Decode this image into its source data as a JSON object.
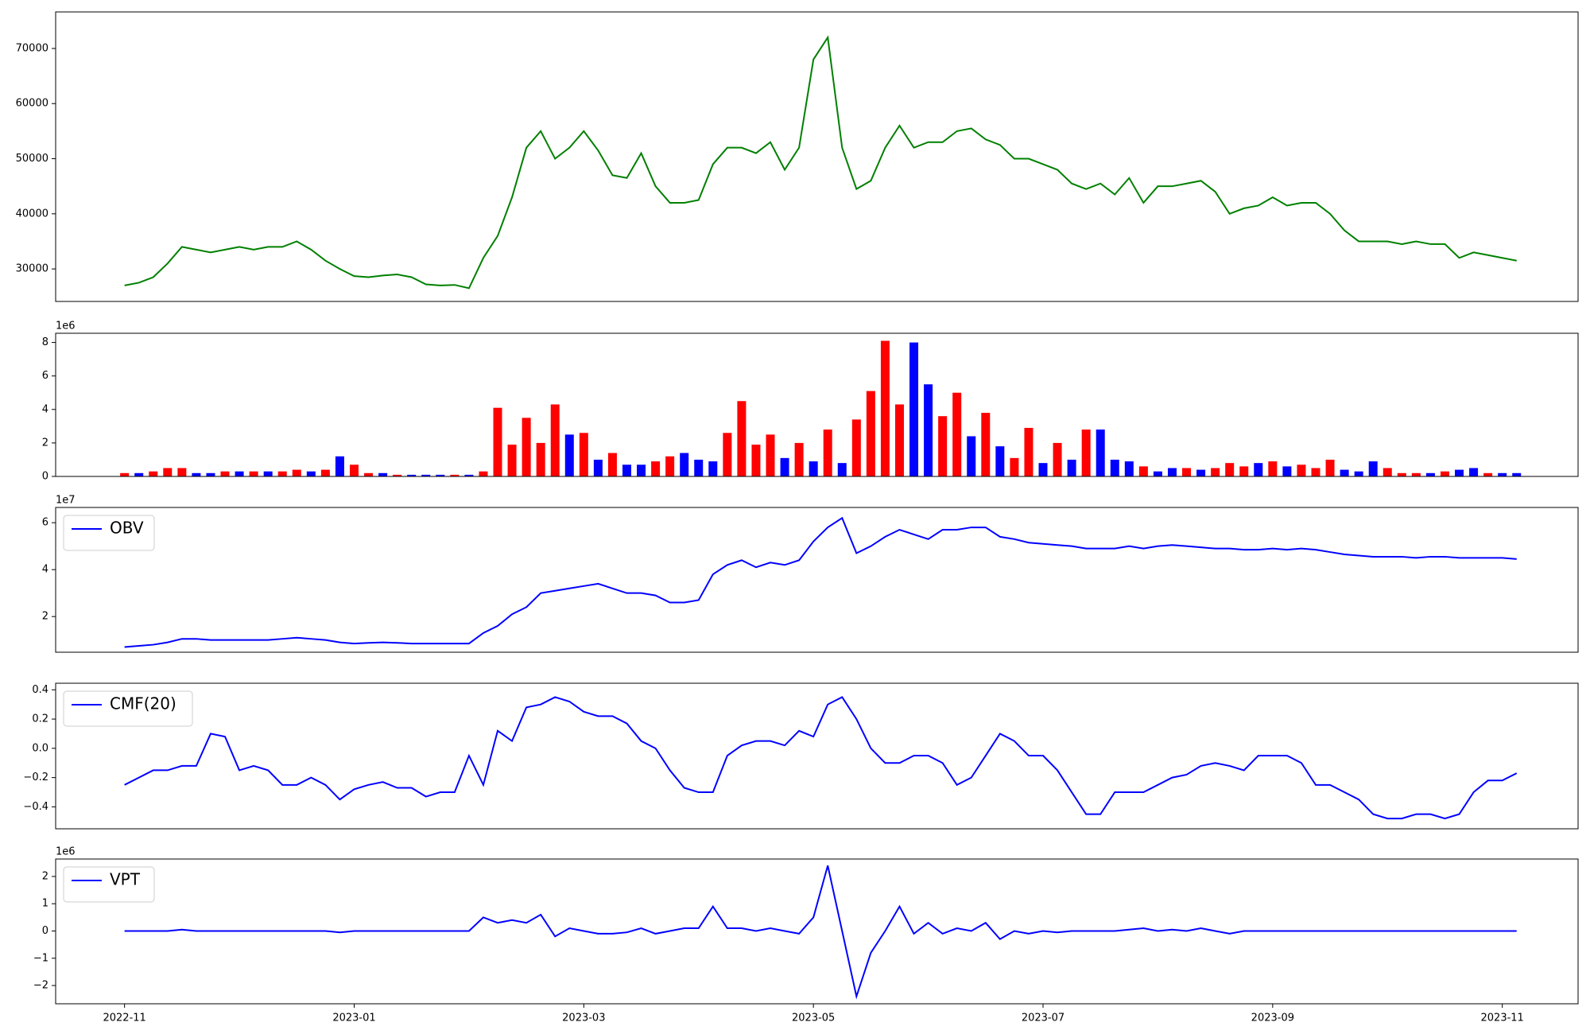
{
  "chart_data": [
    {
      "type": "line",
      "color": "green",
      "x": [
        0,
        0.125,
        0.25,
        0.375,
        0.5,
        0.625,
        0.75,
        0.875,
        1,
        1.125,
        1.25,
        1.375,
        1.5,
        1.625,
        1.75,
        1.875,
        2,
        2.125,
        2.25,
        2.375,
        2.5,
        2.625,
        2.75,
        2.875,
        3,
        3.125,
        3.25,
        3.375,
        3.5,
        3.625,
        3.75,
        3.875,
        4,
        4.125,
        4.25,
        4.375,
        4.5,
        4.625,
        4.75,
        4.875,
        5,
        5.125,
        5.25,
        5.375,
        5.5,
        5.625,
        5.75,
        5.875,
        6,
        6.125,
        6.25,
        6.375,
        6.5,
        6.625,
        6.75,
        6.875,
        7,
        7.125,
        7.25,
        7.375,
        7.5,
        7.625,
        7.75,
        7.875,
        8,
        8.125,
        8.25,
        8.375,
        8.5,
        8.625,
        8.75,
        8.875,
        9,
        9.125,
        9.25,
        9.375,
        9.5,
        9.625,
        9.75,
        9.875,
        10,
        10.125,
        10.25,
        10.375,
        10.5,
        10.625,
        10.75,
        10.875,
        11,
        11.125,
        11.25,
        11.375,
        11.5,
        11.625,
        11.75,
        11.875,
        12,
        12.125
      ],
      "values": [
        27000,
        27500,
        28500,
        31000,
        34000,
        33500,
        33000,
        33500,
        34000,
        33500,
        34000,
        34000,
        35000,
        33500,
        31500,
        30000,
        28700,
        28500,
        28800,
        29000,
        28500,
        27200,
        27000,
        27100,
        26500,
        32000,
        36000,
        43000,
        52000,
        55000,
        50000,
        52000,
        55000,
        51500,
        47000,
        46500,
        51000,
        45000,
        42000,
        42000,
        42500,
        49000,
        52000,
        52000,
        51000,
        53000,
        48000,
        52000,
        68000,
        72000,
        52000,
        44500,
        46000,
        52000,
        56000,
        52000,
        53000,
        53000,
        55000,
        55500,
        53500,
        52500,
        50000,
        50000,
        49000,
        48000,
        45500,
        44500,
        45500,
        43500,
        46500,
        42000,
        45000,
        45000,
        45500,
        46000,
        44000,
        40000,
        41000,
        41500,
        43000,
        41500,
        42000,
        42000,
        40000,
        37000,
        35000,
        35000,
        35000,
        34500,
        35000,
        34500,
        34500,
        32000,
        33000,
        32500,
        32000,
        31500
      ],
      "xlim": [
        -0.6,
        12.66
      ],
      "ylim": [
        24100,
        76630
      ],
      "yticks": [
        30000,
        40000,
        50000,
        60000,
        70000
      ]
    },
    {
      "type": "bar",
      "offset_label": "1e6",
      "x": [
        0,
        0.125,
        0.25,
        0.375,
        0.5,
        0.625,
        0.75,
        0.875,
        1,
        1.125,
        1.25,
        1.375,
        1.5,
        1.625,
        1.75,
        1.875,
        2,
        2.125,
        2.25,
        2.375,
        2.5,
        2.625,
        2.75,
        2.875,
        3,
        3.125,
        3.25,
        3.375,
        3.5,
        3.625,
        3.75,
        3.875,
        4,
        4.125,
        4.25,
        4.375,
        4.5,
        4.625,
        4.75,
        4.875,
        5,
        5.125,
        5.25,
        5.375,
        5.5,
        5.625,
        5.75,
        5.875,
        6,
        6.125,
        6.25,
        6.375,
        6.5,
        6.625,
        6.75,
        6.875,
        7,
        7.125,
        7.25,
        7.375,
        7.5,
        7.625,
        7.75,
        7.875,
        8,
        8.125,
        8.25,
        8.375,
        8.5,
        8.625,
        8.75,
        8.875,
        9,
        9.125,
        9.25,
        9.375,
        9.5,
        9.625,
        9.75,
        9.875,
        10,
        10.125,
        10.25,
        10.375,
        10.5,
        10.625,
        10.75,
        10.875,
        11,
        11.125,
        11.25,
        11.375,
        11.5,
        11.625,
        11.75,
        11.875,
        12,
        12.125
      ],
      "values": [
        0.2,
        0.2,
        0.3,
        0.5,
        0.5,
        0.2,
        0.2,
        0.3,
        0.3,
        0.3,
        0.3,
        0.3,
        0.4,
        0.3,
        0.4,
        1.2,
        0.7,
        0.2,
        0.2,
        0.1,
        0.1,
        0.1,
        0.1,
        0.1,
        0.1,
        0.3,
        4.1,
        1.9,
        3.5,
        2.0,
        4.3,
        2.5,
        2.6,
        1.0,
        1.4,
        0.7,
        0.7,
        0.9,
        1.2,
        1.4,
        1.0,
        0.9,
        2.6,
        4.5,
        1.9,
        2.5,
        1.1,
        2.0,
        0.9,
        2.8,
        0.8,
        3.4,
        5.1,
        8.1,
        4.3,
        8.0,
        5.5,
        3.6,
        5.0,
        2.4,
        3.8,
        1.8,
        1.1,
        2.9,
        0.8,
        2.0,
        1.0,
        2.8,
        2.8,
        1.0,
        0.9,
        0.6,
        0.3,
        0.5,
        0.5,
        0.4,
        0.5,
        0.8,
        0.6,
        0.8,
        0.9,
        0.6,
        0.7,
        0.5,
        1.0,
        0.4,
        0.3,
        0.9,
        0.5,
        0.2,
        0.2,
        0.2,
        0.3,
        0.4,
        0.5,
        0.2,
        0.2,
        0.2
      ],
      "colors": [
        "red",
        "blue",
        "red",
        "red",
        "red",
        "blue",
        "blue",
        "red",
        "blue",
        "red",
        "blue",
        "red",
        "red",
        "blue",
        "red",
        "blue",
        "red",
        "red",
        "blue",
        "red",
        "blue",
        "blue",
        "blue",
        "red",
        "blue",
        "red",
        "red",
        "red",
        "red",
        "red",
        "red",
        "blue",
        "red",
        "blue",
        "red",
        "blue",
        "blue",
        "red",
        "red",
        "blue",
        "blue",
        "blue",
        "red",
        "red",
        "red",
        "red",
        "blue",
        "red",
        "blue",
        "red",
        "blue",
        "red",
        "red",
        "red",
        "red",
        "blue",
        "blue",
        "red",
        "red",
        "blue",
        "red",
        "blue",
        "red",
        "red",
        "blue",
        "red",
        "blue",
        "red",
        "blue",
        "blue",
        "blue",
        "red",
        "blue",
        "blue",
        "red",
        "blue",
        "red",
        "red",
        "red",
        "blue",
        "red",
        "blue",
        "red",
        "red",
        "red",
        "blue",
        "blue",
        "blue",
        "red",
        "red",
        "red",
        "blue",
        "red",
        "blue",
        "blue",
        "red",
        "blue",
        "blue"
      ],
      "xlim": [
        -0.6,
        12.66
      ],
      "ylim": [
        0,
        8.55
      ],
      "yticks": [
        0,
        2,
        4,
        6,
        8
      ]
    },
    {
      "type": "line",
      "offset_label": "1e7",
      "legend": "upper left",
      "x": [
        0,
        0.125,
        0.25,
        0.375,
        0.5,
        0.625,
        0.75,
        0.875,
        1,
        1.125,
        1.25,
        1.375,
        1.5,
        1.625,
        1.75,
        1.875,
        2,
        2.125,
        2.25,
        2.375,
        2.5,
        2.625,
        2.75,
        2.875,
        3,
        3.125,
        3.25,
        3.375,
        3.5,
        3.625,
        3.75,
        3.875,
        4,
        4.125,
        4.25,
        4.375,
        4.5,
        4.625,
        4.75,
        4.875,
        5,
        5.125,
        5.25,
        5.375,
        5.5,
        5.625,
        5.75,
        5.875,
        6,
        6.125,
        6.25,
        6.375,
        6.5,
        6.625,
        6.75,
        6.875,
        7,
        7.125,
        7.25,
        7.375,
        7.5,
        7.625,
        7.75,
        7.875,
        8,
        8.125,
        8.25,
        8.375,
        8.5,
        8.625,
        8.75,
        8.875,
        9,
        9.125,
        9.25,
        9.375,
        9.5,
        9.625,
        9.75,
        9.875,
        10,
        10.125,
        10.25,
        10.375,
        10.5,
        10.625,
        10.75,
        10.875,
        11,
        11.125,
        11.25,
        11.375,
        11.5,
        11.625,
        11.75,
        11.875,
        12,
        12.125
      ],
      "series": [
        {
          "name": "OBV",
          "color": "blue",
          "values": [
            0.7,
            0.75,
            0.8,
            0.9,
            1.05,
            1.05,
            1.0,
            1.0,
            1.0,
            1.0,
            1.0,
            1.05,
            1.1,
            1.05,
            1.0,
            0.9,
            0.85,
            0.88,
            0.9,
            0.88,
            0.85,
            0.85,
            0.85,
            0.85,
            0.85,
            1.3,
            1.6,
            2.1,
            2.4,
            3.0,
            3.1,
            3.2,
            3.3,
            3.4,
            3.2,
            3.0,
            3.0,
            2.9,
            2.6,
            2.6,
            2.7,
            3.8,
            4.2,
            4.4,
            4.1,
            4.3,
            4.2,
            4.4,
            5.2,
            5.8,
            6.2,
            4.7,
            5.0,
            5.4,
            5.7,
            5.5,
            5.3,
            5.7,
            5.7,
            5.8,
            5.8,
            5.4,
            5.3,
            5.15,
            5.1,
            5.05,
            5.0,
            4.9,
            4.9,
            4.9,
            5.0,
            4.9,
            5.0,
            5.05,
            5.0,
            4.95,
            4.9,
            4.9,
            4.85,
            4.85,
            4.9,
            4.85,
            4.9,
            4.85,
            4.75,
            4.65,
            4.6,
            4.55,
            4.55,
            4.55,
            4.5,
            4.55,
            4.55,
            4.5,
            4.5,
            4.5,
            4.5,
            4.45
          ]
        }
      ],
      "xlim": [
        -0.6,
        12.66
      ],
      "ylim": [
        0.48,
        6.65
      ],
      "yticks": [
        2,
        4,
        6
      ]
    },
    {
      "type": "line",
      "legend": "upper left",
      "x": [
        0,
        0.125,
        0.25,
        0.375,
        0.5,
        0.625,
        0.75,
        0.875,
        1,
        1.125,
        1.25,
        1.375,
        1.5,
        1.625,
        1.75,
        1.875,
        2,
        2.125,
        2.25,
        2.375,
        2.5,
        2.625,
        2.75,
        2.875,
        3,
        3.125,
        3.25,
        3.375,
        3.5,
        3.625,
        3.75,
        3.875,
        4,
        4.125,
        4.25,
        4.375,
        4.5,
        4.625,
        4.75,
        4.875,
        5,
        5.125,
        5.25,
        5.375,
        5.5,
        5.625,
        5.75,
        5.875,
        6,
        6.125,
        6.25,
        6.375,
        6.5,
        6.625,
        6.75,
        6.875,
        7,
        7.125,
        7.25,
        7.375,
        7.5,
        7.625,
        7.75,
        7.875,
        8,
        8.125,
        8.25,
        8.375,
        8.5,
        8.625,
        8.75,
        8.875,
        9,
        9.125,
        9.25,
        9.375,
        9.5,
        9.625,
        9.75,
        9.875,
        10,
        10.125,
        10.25,
        10.375,
        10.5,
        10.625,
        10.75,
        10.875,
        11,
        11.125,
        11.25,
        11.375,
        11.5,
        11.625,
        11.75,
        11.875,
        12,
        12.125
      ],
      "series": [
        {
          "name": "CMF(20)",
          "color": "blue",
          "values": [
            -0.25,
            -0.2,
            -0.15,
            -0.15,
            -0.12,
            -0.12,
            0.1,
            0.08,
            -0.15,
            -0.12,
            -0.15,
            -0.25,
            -0.25,
            -0.2,
            -0.25,
            -0.35,
            -0.28,
            -0.25,
            -0.23,
            -0.27,
            -0.27,
            -0.33,
            -0.3,
            -0.3,
            -0.05,
            -0.25,
            0.12,
            0.05,
            0.28,
            0.3,
            0.35,
            0.32,
            0.25,
            0.22,
            0.22,
            0.17,
            0.05,
            0.0,
            -0.15,
            -0.27,
            -0.3,
            -0.3,
            -0.05,
            0.02,
            0.05,
            0.05,
            0.02,
            0.12,
            0.08,
            0.3,
            0.35,
            0.2,
            0.0,
            -0.1,
            -0.1,
            -0.05,
            -0.05,
            -0.1,
            -0.25,
            -0.2,
            -0.05,
            0.1,
            0.05,
            -0.05,
            -0.05,
            -0.15,
            -0.3,
            -0.45,
            -0.45,
            -0.3,
            -0.3,
            -0.3,
            -0.25,
            -0.2,
            -0.18,
            -0.12,
            -0.1,
            -0.12,
            -0.15,
            -0.05,
            -0.05,
            -0.05,
            -0.1,
            -0.25,
            -0.25,
            -0.3,
            -0.35,
            -0.45,
            -0.48,
            -0.48,
            -0.45,
            -0.45,
            -0.48,
            -0.45,
            -0.3,
            -0.22,
            -0.22,
            -0.17
          ]
        }
      ],
      "xlim": [
        -0.6,
        12.66
      ],
      "ylim": [
        -0.55,
        0.445
      ],
      "yticks": [
        {
          "value": -0.4,
          "label": "−0.4"
        },
        {
          "value": -0.2,
          "label": "−0.2"
        },
        {
          "value": 0,
          "label": "0.0"
        },
        0.2,
        0.4
      ]
    },
    {
      "type": "line",
      "offset_label": "1e6",
      "legend": "upper left",
      "x": [
        0,
        0.125,
        0.25,
        0.375,
        0.5,
        0.625,
        0.75,
        0.875,
        1,
        1.125,
        1.25,
        1.375,
        1.5,
        1.625,
        1.75,
        1.875,
        2,
        2.125,
        2.25,
        2.375,
        2.5,
        2.625,
        2.75,
        2.875,
        3,
        3.125,
        3.25,
        3.375,
        3.5,
        3.625,
        3.75,
        3.875,
        4,
        4.125,
        4.25,
        4.375,
        4.5,
        4.625,
        4.75,
        4.875,
        5,
        5.125,
        5.25,
        5.375,
        5.5,
        5.625,
        5.75,
        5.875,
        6,
        6.125,
        6.25,
        6.375,
        6.5,
        6.625,
        6.75,
        6.875,
        7,
        7.125,
        7.25,
        7.375,
        7.5,
        7.625,
        7.75,
        7.875,
        8,
        8.125,
        8.25,
        8.375,
        8.5,
        8.625,
        8.75,
        8.875,
        9,
        9.125,
        9.25,
        9.375,
        9.5,
        9.625,
        9.75,
        9.875,
        10,
        10.125,
        10.25,
        10.375,
        10.5,
        10.625,
        10.75,
        10.875,
        11,
        11.125,
        11.25,
        11.375,
        11.5,
        11.625,
        11.75,
        11.875,
        12,
        12.125
      ],
      "series": [
        {
          "name": "VPT",
          "color": "blue",
          "values": [
            0,
            0,
            0,
            0,
            0.05,
            0,
            0,
            0,
            0,
            0,
            0,
            0,
            0,
            0,
            0,
            -0.05,
            0,
            0,
            0,
            0,
            0,
            0,
            0,
            0,
            0,
            0.5,
            0.3,
            0.4,
            0.3,
            0.6,
            -0.2,
            0.1,
            0,
            -0.1,
            -0.1,
            -0.05,
            0.1,
            -0.1,
            0,
            0.1,
            0.1,
            0.9,
            0.1,
            0.1,
            0,
            0.1,
            0,
            -0.1,
            0.5,
            2.4,
            0,
            -2.4,
            -0.8,
            0,
            0.9,
            -0.1,
            0.3,
            -0.1,
            0.1,
            0,
            0.3,
            -0.3,
            0,
            -0.1,
            0,
            -0.05,
            0,
            0,
            0,
            0,
            0.05,
            0.1,
            0,
            0.05,
            0,
            0.1,
            0,
            -0.1,
            0,
            0,
            0,
            0,
            0,
            0,
            0,
            0,
            0,
            0,
            0,
            0,
            0,
            0,
            0,
            0,
            0,
            0,
            0,
            0
          ]
        }
      ],
      "xlim": [
        -0.6,
        12.66
      ],
      "ylim": [
        -2.67,
        2.64
      ],
      "yticks": [
        {
          "value": -2,
          "label": "−2"
        },
        {
          "value": -1,
          "label": "−1"
        },
        0,
        1,
        2
      ],
      "xticks": [
        {
          "value": 0,
          "label": "2022-11"
        },
        {
          "value": 2,
          "label": "2023-01"
        },
        {
          "value": 4,
          "label": "2023-03"
        },
        {
          "value": 6,
          "label": "2023-05"
        },
        {
          "value": 8,
          "label": "2023-07"
        },
        {
          "value": 10,
          "label": "2023-09"
        },
        {
          "value": 12,
          "label": "2023-11"
        }
      ]
    }
  ]
}
